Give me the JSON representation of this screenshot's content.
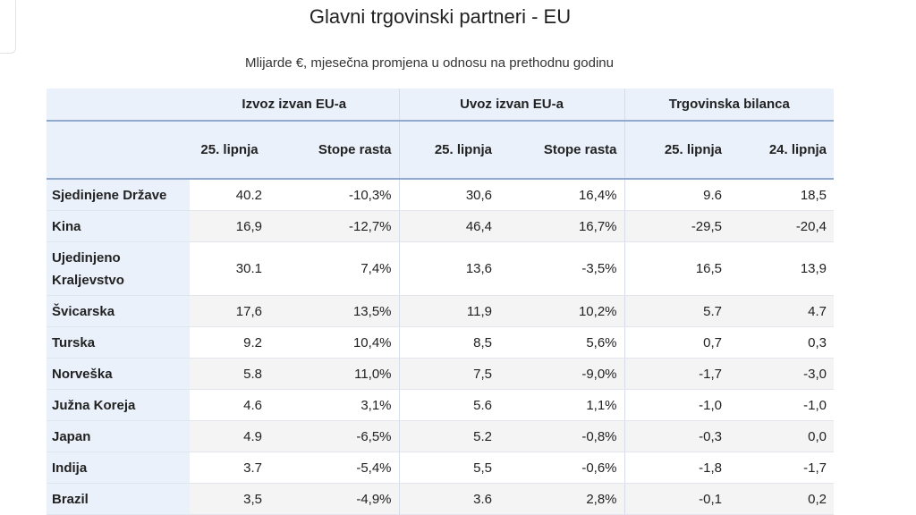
{
  "title": "Glavni trgovinski partneri - EU",
  "subtitle": "Mlijarde €, mjesečna promjena u odnosu na prethodnu godinu",
  "chart_data": {
    "type": "table",
    "title": "Glavni trgovinski partneri - EU",
    "subtitle": "Mlijarde €, mjesečna promjena u odnosu na prethodnu godinu",
    "column_groups": [
      "Izvoz izvan EU-a",
      "Uvoz izvan EU-a",
      "Trgovinska bilanca"
    ],
    "columns": [
      "",
      "25. lipnja",
      "Stope rasta",
      "25. lipnja",
      "Stope rasta",
      "25. lipnja",
      "24. lipnja"
    ],
    "rows": [
      [
        "Sjedinjene Države",
        "40.2",
        "-10,3%",
        "30,6",
        "16,4%",
        "9.6",
        "18,5"
      ],
      [
        "Kina",
        "16,9",
        "-12,7%",
        "46,4",
        "16,7%",
        "-29,5",
        "-20,4"
      ],
      [
        "Ujedinjeno Kraljevstvo",
        "30.1",
        "7,4%",
        "13,6",
        "-3,5%",
        "16,5",
        "13,9"
      ],
      [
        "Švicarska",
        "17,6",
        "13,5%",
        "11,9",
        "10,2%",
        "5.7",
        "4.7"
      ],
      [
        "Turska",
        "9.2",
        "10,4%",
        "8,5",
        "5,6%",
        "0,7",
        "0,3"
      ],
      [
        "Norveška",
        "5.8",
        "11,0%",
        "7,5",
        "-9,0%",
        "-1,7",
        "-3,0"
      ],
      [
        "Južna Koreja",
        "4.6",
        "3,1%",
        "5.6",
        "1,1%",
        "-1,0",
        "-1,0"
      ],
      [
        "Japan",
        "4.9",
        "-6,5%",
        "5.2",
        "-0,8%",
        "-0,3",
        "0,0"
      ],
      [
        "Indija",
        "3.7",
        "-5,4%",
        "5,5",
        "-0,6%",
        "-1,8",
        "-1,7"
      ],
      [
        "Brazil",
        "3,5",
        "-4,9%",
        "3.6",
        "2,8%",
        "-0,1",
        "0,2"
      ]
    ]
  },
  "colors": {
    "header_bg": "#eaf1fb",
    "header_rule": "#8fa9cf",
    "stripe": "#f4f4f4"
  }
}
